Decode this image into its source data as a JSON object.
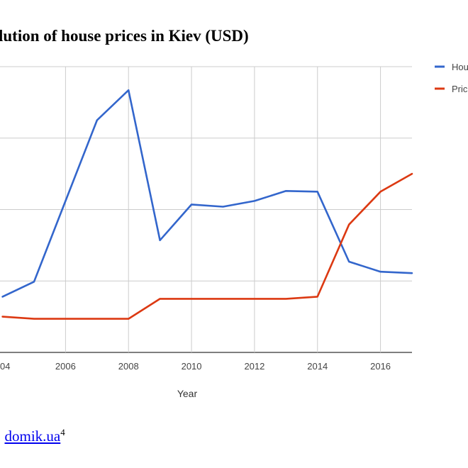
{
  "page": {
    "title": "lution of house prices in Kiev (USD)",
    "source_prefix": ", ",
    "source_link": "domik.ua",
    "source_ref": "4"
  },
  "chart_data": {
    "type": "line",
    "title": "lution of house prices in Kiev (USD)",
    "xlabel": "Year",
    "ylabel": "",
    "x": [
      2004,
      2005,
      2006,
      2007,
      2008,
      2009,
      2010,
      2011,
      2012,
      2013,
      2014,
      2015,
      2016,
      2017
    ],
    "x_ticks": [
      "04",
      "2006",
      "2008",
      "2010",
      "2012",
      "2014",
      "2016"
    ],
    "xlim": [
      2003.92,
      2017
    ],
    "ylim": [
      0,
      4
    ],
    "y_gridlines": [
      0,
      1,
      2,
      3,
      4
    ],
    "grid": true,
    "legend_position": "right",
    "series": [
      {
        "name": "Hou",
        "color": "#3366cc",
        "values": [
          0.78,
          0.99,
          2.12,
          3.25,
          3.67,
          1.57,
          2.07,
          2.04,
          2.12,
          2.26,
          2.25,
          1.27,
          1.13,
          1.11
        ]
      },
      {
        "name": "Pric",
        "color": "#dc3912",
        "values": [
          0.5,
          0.47,
          0.47,
          0.47,
          0.47,
          0.75,
          0.75,
          0.75,
          0.75,
          0.75,
          0.78,
          1.79,
          2.25,
          2.5
        ]
      }
    ]
  }
}
